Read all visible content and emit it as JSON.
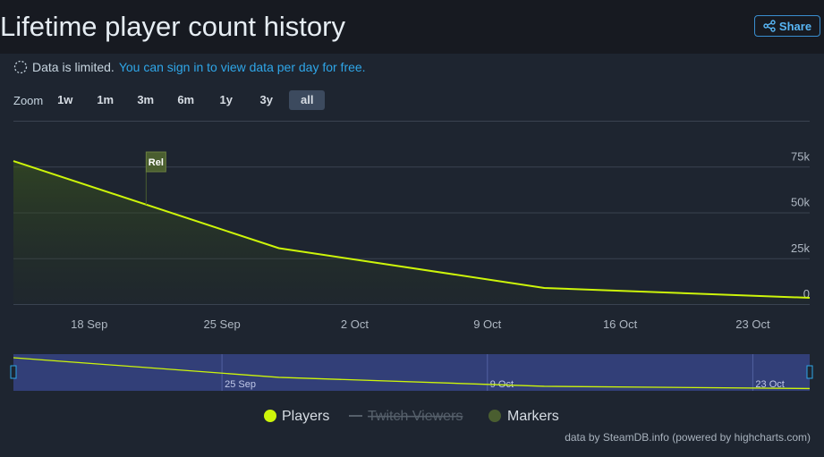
{
  "header": {
    "title": "Lifetime player count history",
    "share": "Share"
  },
  "notice": {
    "text": "Data is limited.",
    "link": "You can sign in to view data per day for free."
  },
  "zoom": {
    "label": "Zoom",
    "options": [
      "1w",
      "1m",
      "3m",
      "6m",
      "1y",
      "3y",
      "all"
    ],
    "active": 6
  },
  "credit": "data by SteamDB.info (powered by highcharts.com)",
  "chart_data": {
    "type": "line",
    "x": [
      "14 Sep",
      "28 Sep",
      "12 Oct",
      "26 Oct"
    ],
    "series": [
      {
        "name": "Players",
        "color": "#cdf50a",
        "values": [
          78000,
          30500,
          8800,
          3400
        ]
      },
      {
        "name": "Twitch Viewers",
        "color": "#56606b",
        "visible": false,
        "values": [
          null,
          null,
          null,
          null
        ]
      }
    ],
    "markers": {
      "name": "Markers",
      "color": "#4a5e30",
      "items": [
        {
          "x": "21 Sep",
          "label": "Rel"
        }
      ]
    },
    "xlim": [
      "14 Sep",
      "26 Oct"
    ],
    "xticks": [
      "18 Sep",
      "25 Sep",
      "2 Oct",
      "9 Oct",
      "16 Oct",
      "23 Oct"
    ],
    "ylim": [
      0,
      100000
    ],
    "yticks": [
      0,
      {
        "value": 25000,
        "label": "25k"
      },
      {
        "value": 50000,
        "label": "50k"
      },
      {
        "value": 75000,
        "label": "75k"
      }
    ],
    "grid": true,
    "navigator_ticks": [
      "25 Sep",
      "9 Oct",
      "23 Oct"
    ]
  }
}
